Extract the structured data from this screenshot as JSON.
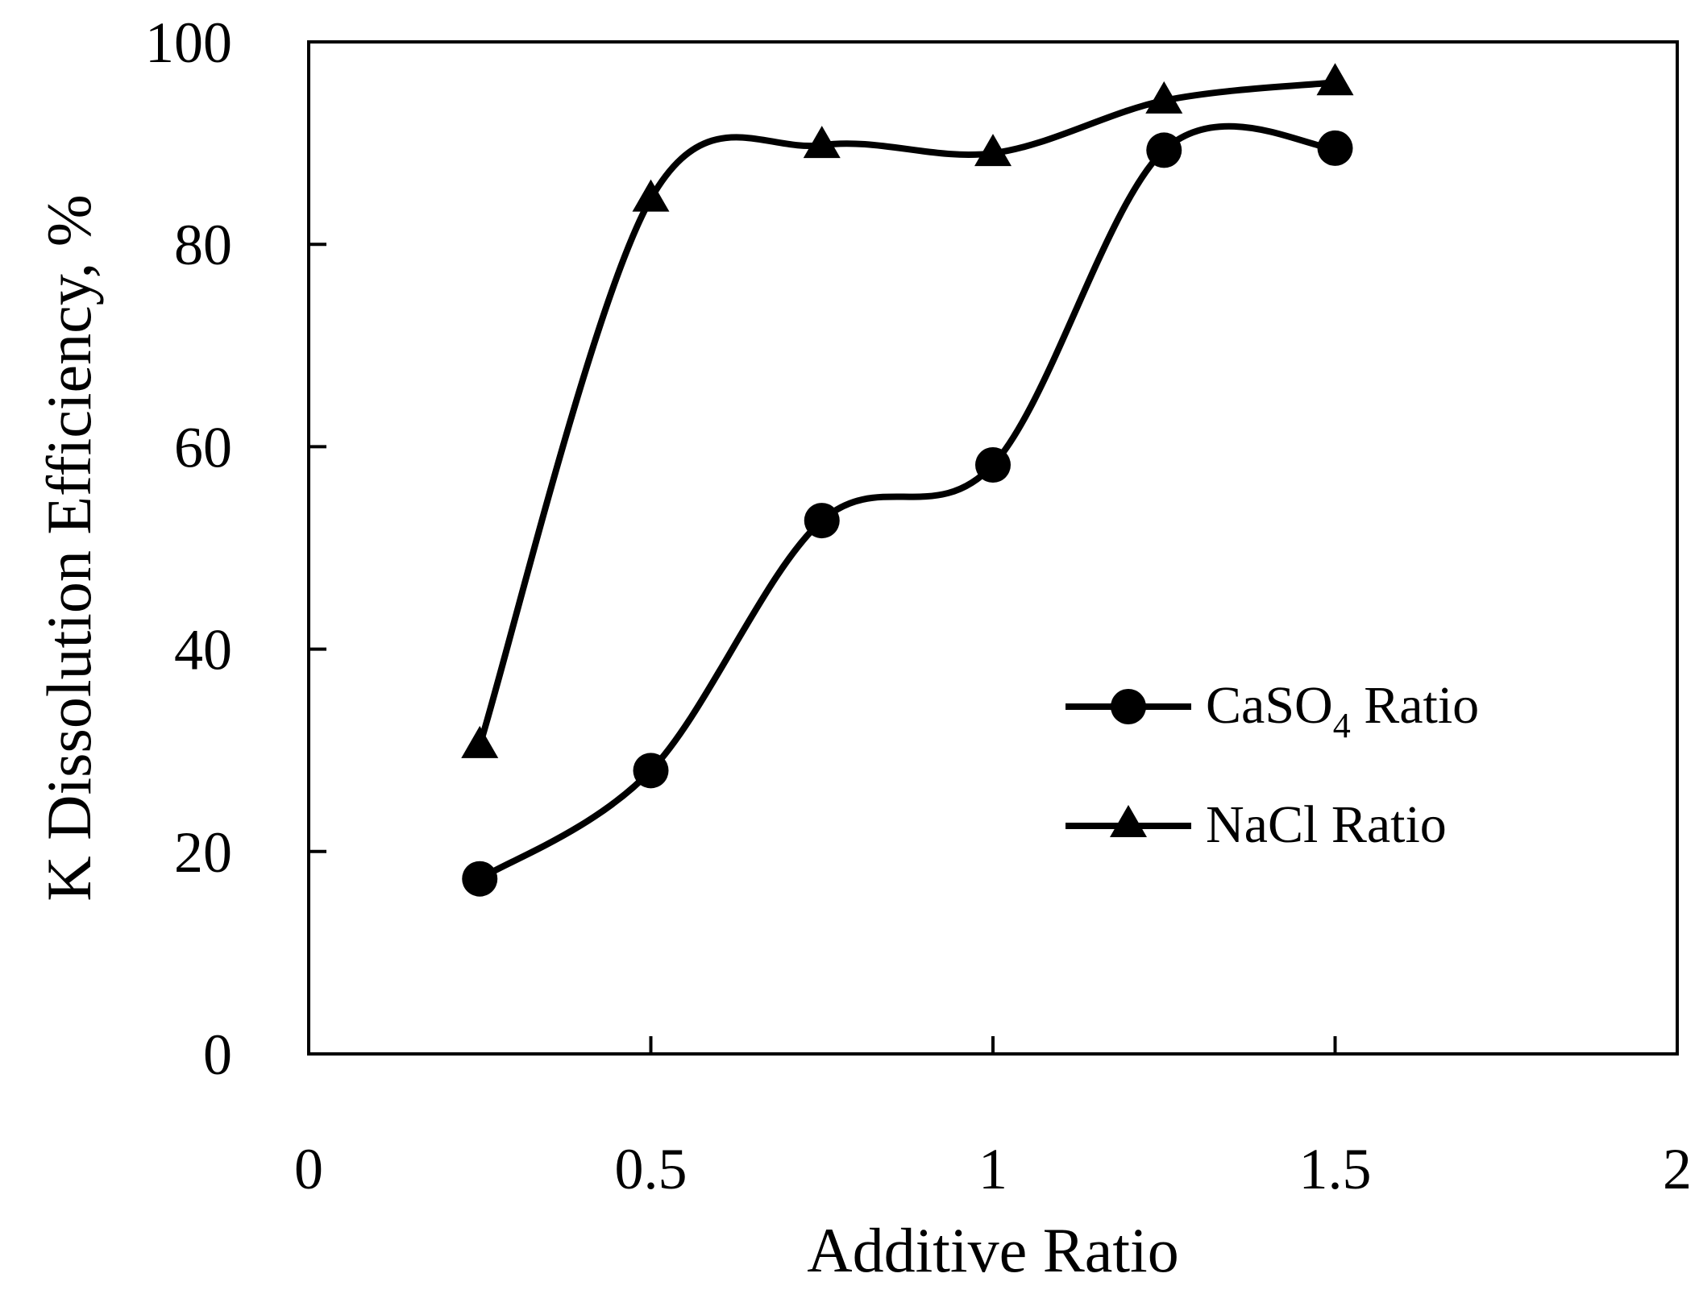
{
  "chart_data": {
    "type": "line",
    "title": "",
    "xlabel": "Additive Ratio",
    "ylabel": "K Dissolution Efficiency, %",
    "xlim": [
      0,
      2
    ],
    "ylim": [
      0,
      100
    ],
    "x_ticks": [
      "0",
      "0.5",
      "1",
      "1.5",
      "2"
    ],
    "y_ticks": [
      "0",
      "20",
      "40",
      "60",
      "80",
      "100"
    ],
    "grid": false,
    "legend_position": "center-right",
    "series": [
      {
        "name": "CaSO4 Ratio",
        "label_main": "CaSO",
        "label_sub": "4",
        "label_rest": " Ratio",
        "marker": "circle",
        "x": [
          0.25,
          0.5,
          0.75,
          1.0,
          1.25,
          1.5
        ],
        "y": [
          17.3,
          28.0,
          52.7,
          58.2,
          89.3,
          89.5
        ]
      },
      {
        "name": "NaCl Ratio",
        "label_main": "NaCl Ratio",
        "marker": "triangle",
        "x": [
          0.25,
          0.5,
          0.75,
          1.0,
          1.25,
          1.5
        ],
        "y": [
          30.5,
          84.5,
          89.8,
          89.0,
          94.2,
          96.0
        ]
      }
    ],
    "colors": {
      "line": "#000000",
      "background": "#ffffff"
    }
  }
}
